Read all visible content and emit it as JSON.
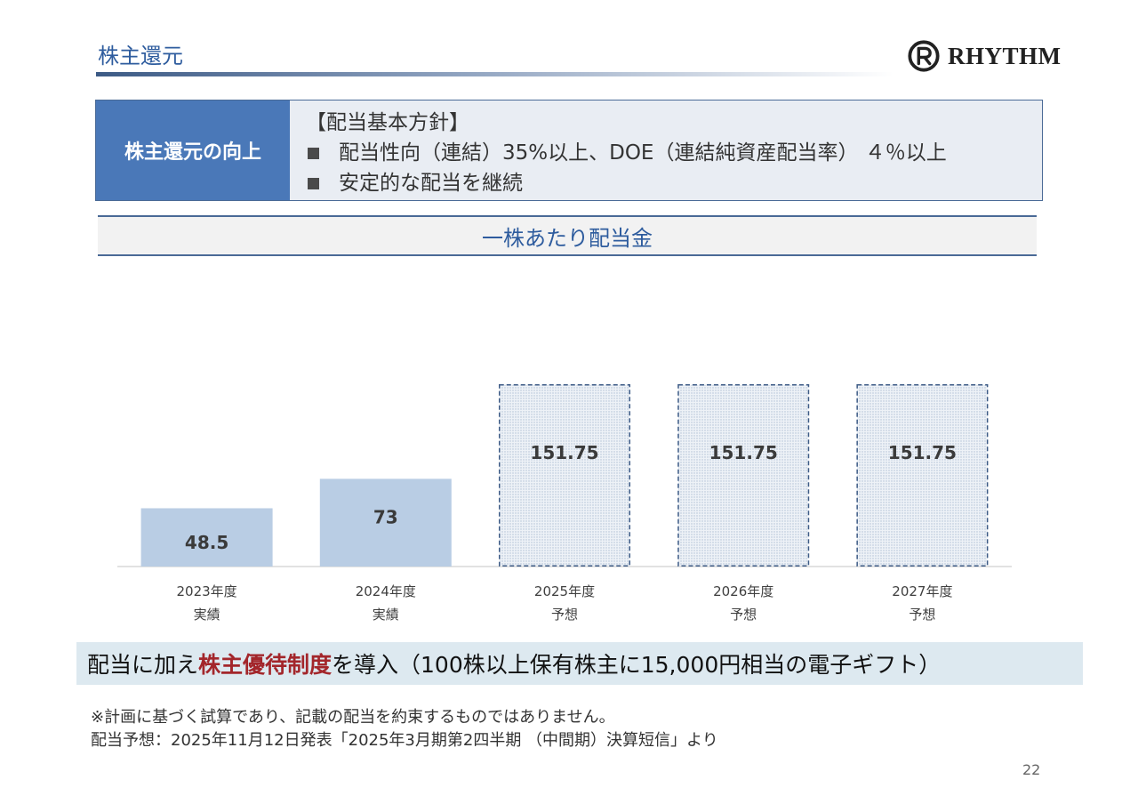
{
  "header": {
    "title": "株主還元",
    "logo_text": "RHYTHM",
    "logo_icon": "rhythm-r-logo-icon"
  },
  "policy": {
    "heading": "株主還元の向上",
    "lines": [
      "【配当基本方針】",
      "配当性向（連結）35%以上、DOE（連結純資産配当率） ４％以上",
      "安定的な配当を継続"
    ]
  },
  "section_title": "一株あたり配当金",
  "chart_data": {
    "type": "bar",
    "title": "一株あたり配当金",
    "categories": [
      [
        "2023年度",
        "実績"
      ],
      [
        "2024年度",
        "実績"
      ],
      [
        "2025年度",
        "予想"
      ],
      [
        "2026年度",
        "予想"
      ],
      [
        "2027年度",
        "予想"
      ]
    ],
    "values": [
      48.5,
      73,
      151.75,
      151.75,
      151.75
    ],
    "value_labels": [
      "48.5",
      "73",
      "151.75",
      "151.75",
      "151.75"
    ],
    "bar_style": [
      "actual",
      "actual",
      "forecast",
      "forecast",
      "forecast"
    ],
    "ylim": [
      0,
      151.75
    ],
    "grid": false,
    "legend": "none",
    "colors": {
      "actual": "#b9cde4",
      "forecast_fill": "#e8eef5",
      "forecast_border": "#3c5a85",
      "baseline": "#d9d9d9"
    }
  },
  "perk": {
    "prefix": "配当に加え",
    "highlight": "株主優待制度",
    "suffix": "を導入（100株以上保有株主に15,000円相当の電子ギフト）"
  },
  "notes": [
    "※計画に基づく試算であり、記載の配当を約束するものではありません。",
    "配当予想：2025年11月12日発表「2025年3月期第2四半期 （中間期）決算短信」より"
  ],
  "page_number": "22"
}
